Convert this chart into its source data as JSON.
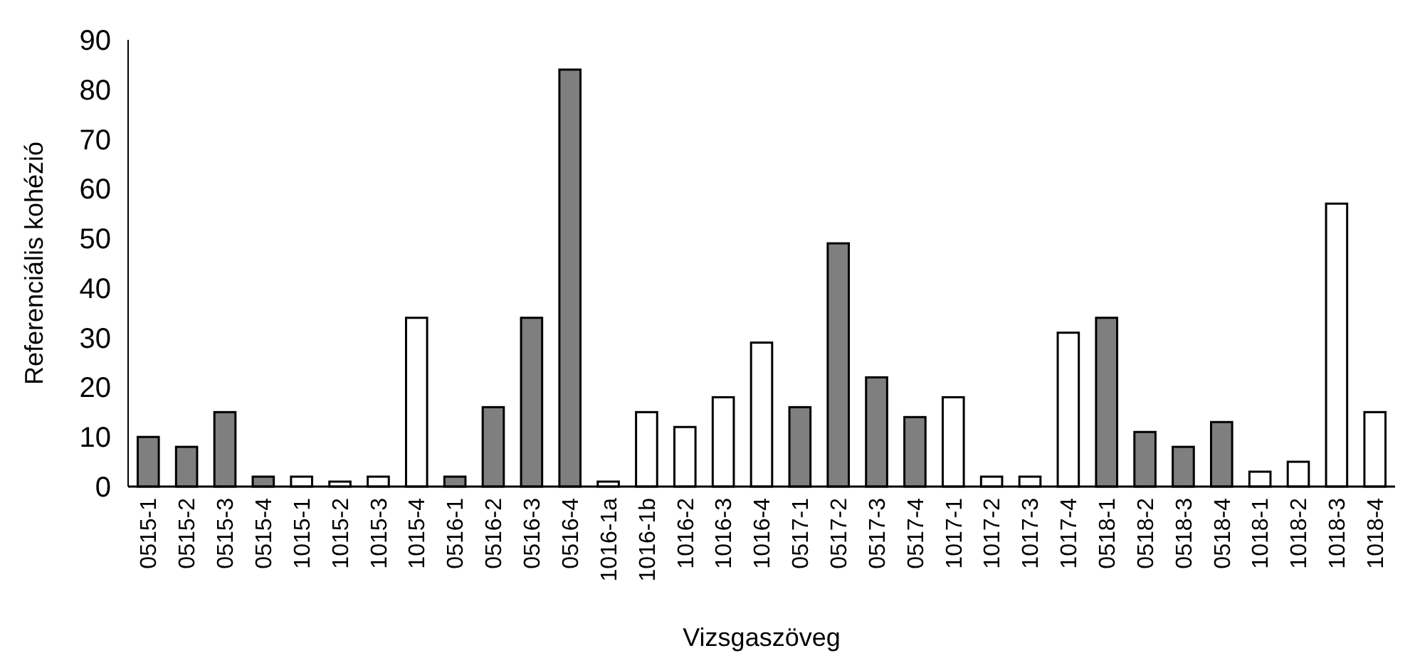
{
  "chart_data": {
    "type": "bar",
    "xlabel": "Vizsgaszöveg",
    "ylabel": "Referenciális kohézió",
    "categories": [
      "0515-1",
      "0515-2",
      "0515-3",
      "0515-4",
      "1015-1",
      "1015-2",
      "1015-3",
      "1015-4",
      "0516-1",
      "0516-2",
      "0516-3",
      "0516-4",
      "1016-1a",
      "1016-1b",
      "1016-2",
      "1016-3",
      "1016-4",
      "0517-1",
      "0517-2",
      "0517-3",
      "0517-4",
      "1017-1",
      "1017-2",
      "1017-3",
      "1017-4",
      "0518-1",
      "0518-2",
      "0518-3",
      "0518-4",
      "1018-1",
      "1018-2",
      "1018-3",
      "1018-4"
    ],
    "values": [
      10,
      8,
      15,
      2,
      2,
      1,
      2,
      34,
      2,
      16,
      34,
      84,
      1,
      15,
      12,
      18,
      29,
      16,
      49,
      22,
      14,
      18,
      2,
      2,
      31,
      34,
      11,
      8,
      13,
      3,
      5,
      57,
      15
    ],
    "colors": [
      "#7f7f7f",
      "#7f7f7f",
      "#7f7f7f",
      "#7f7f7f",
      "#ffffff",
      "#ffffff",
      "#ffffff",
      "#ffffff",
      "#7f7f7f",
      "#7f7f7f",
      "#7f7f7f",
      "#7f7f7f",
      "#ffffff",
      "#ffffff",
      "#ffffff",
      "#ffffff",
      "#ffffff",
      "#7f7f7f",
      "#7f7f7f",
      "#7f7f7f",
      "#7f7f7f",
      "#ffffff",
      "#ffffff",
      "#ffffff",
      "#ffffff",
      "#7f7f7f",
      "#7f7f7f",
      "#7f7f7f",
      "#7f7f7f",
      "#ffffff",
      "#ffffff",
      "#ffffff",
      "#ffffff"
    ],
    "ylim": [
      0,
      90
    ],
    "yticks": [
      0,
      10,
      20,
      30,
      40,
      50,
      60,
      70,
      80,
      90
    ],
    "grid": false
  }
}
